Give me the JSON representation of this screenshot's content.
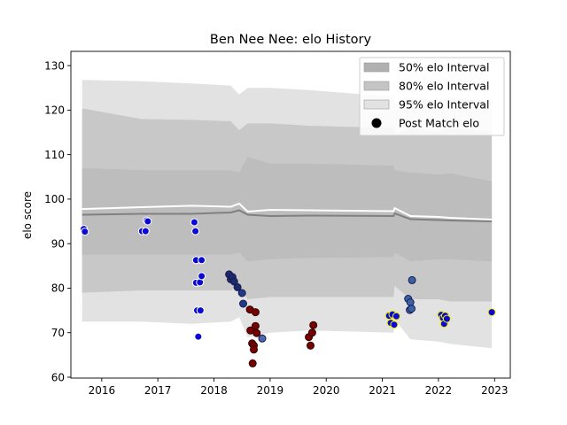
{
  "chart_data": {
    "type": "scatter",
    "title": "Ben Nee Nee: elo History",
    "xlabel": "",
    "ylabel": "elo score",
    "xlim": [
      2015.45,
      2023.28
    ],
    "ylim": [
      59.8,
      133.2
    ],
    "x_ticks": [
      2016,
      2017,
      2018,
      2019,
      2020,
      2021,
      2022,
      2023
    ],
    "y_ticks": [
      60,
      70,
      80,
      90,
      100,
      110,
      120,
      130
    ],
    "legend_position": "top-right",
    "legend": [
      {
        "label": "50% elo Interval",
        "kind": "patch",
        "color": "#b0b0b0"
      },
      {
        "label": "80% elo Interval",
        "kind": "patch",
        "color": "#c4c4c4"
      },
      {
        "label": "95% elo Interval",
        "kind": "patch",
        "color": "#e2e2e2"
      },
      {
        "label": "Post Match elo",
        "kind": "marker",
        "color": "#000000"
      }
    ],
    "interval_x": [
      2015.65,
      2015.7,
      2016.7,
      2017.6,
      2018.3,
      2018.45,
      2018.6,
      2019.0,
      2019.7,
      2021.2,
      2021.22,
      2021.5,
      2022.0,
      2022.2,
      2022.95
    ],
    "bands": {
      "ci95_upper": [
        126.8,
        126.8,
        126.5,
        126.0,
        125.5,
        123.5,
        125.0,
        125.0,
        124.5,
        123.0,
        121.5,
        123.0,
        122.0,
        123.0,
        122.0
      ],
      "ci80_upper": [
        120.3,
        120.3,
        118.0,
        117.8,
        117.5,
        115.5,
        117.0,
        117.0,
        116.5,
        116.0,
        114.5,
        116.0,
        115.0,
        116.0,
        115.0
      ],
      "ci50_upper": [
        107.0,
        107.0,
        106.5,
        106.5,
        106.5,
        106.0,
        109.5,
        108.0,
        108.0,
        107.5,
        106.5,
        106.0,
        105.5,
        105.8,
        104.0
      ],
      "ci50_lower": [
        87.5,
        87.5,
        87.5,
        87.5,
        87.5,
        88.0,
        86.0,
        86.5,
        86.8,
        87.0,
        88.0,
        86.0,
        86.5,
        86.5,
        86.0
      ],
      "ci80_lower": [
        79.0,
        79.0,
        79.5,
        79.5,
        79.5,
        80.5,
        77.5,
        78.0,
        78.0,
        78.0,
        80.5,
        77.5,
        77.5,
        77.0,
        77.0
      ],
      "ci95_lower": [
        72.5,
        72.5,
        72.5,
        72.0,
        72.5,
        73.5,
        69.0,
        70.0,
        70.5,
        70.0,
        73.0,
        68.5,
        68.0,
        67.5,
        66.5
      ]
    },
    "series": [
      {
        "line": "white",
        "color": "#ffffff",
        "values": [
          97.8,
          97.8,
          98.2,
          98.5,
          98.3,
          99.0,
          97.2,
          97.6,
          97.5,
          97.3,
          98.0,
          96.2,
          96.0,
          95.8,
          95.4
        ]
      },
      {
        "line": "gray",
        "color": "#808080",
        "values": [
          96.5,
          96.5,
          96.7,
          96.7,
          97.0,
          97.5,
          96.5,
          96.2,
          96.3,
          96.2,
          96.8,
          95.5,
          95.3,
          95.2,
          95.0
        ]
      }
    ],
    "points": [
      {
        "x": 2015.68,
        "y": 93.3,
        "fill": "#0a0ad4",
        "stroke": "#ffffff"
      },
      {
        "x": 2015.7,
        "y": 92.7,
        "fill": "#0a0ad4",
        "stroke": "#ffffff"
      },
      {
        "x": 2016.72,
        "y": 92.8,
        "fill": "#0a0ad4",
        "stroke": "#ffffff"
      },
      {
        "x": 2016.78,
        "y": 92.8,
        "fill": "#0a0ad4",
        "stroke": "#ffffff"
      },
      {
        "x": 2016.8,
        "y": 95.2,
        "fill": "#0a0ad4",
        "stroke": "#ffffff"
      },
      {
        "x": 2016.82,
        "y": 95.0,
        "fill": "#0a0ad4",
        "stroke": "#ffffff"
      },
      {
        "x": 2017.65,
        "y": 94.8,
        "fill": "#0a0ad4",
        "stroke": "#ffffff"
      },
      {
        "x": 2017.67,
        "y": 92.8,
        "fill": "#0a0ad4",
        "stroke": "#ffffff"
      },
      {
        "x": 2017.68,
        "y": 86.3,
        "fill": "#0a0ad4",
        "stroke": "#ffffff"
      },
      {
        "x": 2017.68,
        "y": 81.2,
        "fill": "#0a0ad4",
        "stroke": "#ffffff"
      },
      {
        "x": 2017.7,
        "y": 75.0,
        "fill": "#0a0ad4",
        "stroke": "#ffffff"
      },
      {
        "x": 2017.72,
        "y": 69.1,
        "fill": "#0a0ad4",
        "stroke": "#ffffff"
      },
      {
        "x": 2017.75,
        "y": 81.3,
        "fill": "#0a0ad4",
        "stroke": "#ffffff"
      },
      {
        "x": 2017.76,
        "y": 75.0,
        "fill": "#0a0ad4",
        "stroke": "#ffffff"
      },
      {
        "x": 2017.78,
        "y": 82.7,
        "fill": "#0a0ad4",
        "stroke": "#ffffff"
      },
      {
        "x": 2017.78,
        "y": 86.3,
        "fill": "#0a0ad4",
        "stroke": "#ffffff"
      },
      {
        "x": 2018.27,
        "y": 83.1,
        "fill": "#1a2a6e",
        "stroke": "#1a1a4a"
      },
      {
        "x": 2018.3,
        "y": 82.0,
        "fill": "#1a2a6e",
        "stroke": "#1a1a4a"
      },
      {
        "x": 2018.33,
        "y": 82.5,
        "fill": "#1a2a6e",
        "stroke": "#1a1a4a"
      },
      {
        "x": 2018.36,
        "y": 81.5,
        "fill": "#1a2a6e",
        "stroke": "#1a1a4a"
      },
      {
        "x": 2018.42,
        "y": 80.2,
        "fill": "#1a2a6e",
        "stroke": "#1a1a4a"
      },
      {
        "x": 2018.5,
        "y": 78.9,
        "fill": "#1e3a8a",
        "stroke": "#1a1a4a"
      },
      {
        "x": 2018.52,
        "y": 76.5,
        "fill": "#1e3a8a",
        "stroke": "#1a1a4a"
      },
      {
        "x": 2018.64,
        "y": 75.2,
        "fill": "#7a0000",
        "stroke": "#2a0000"
      },
      {
        "x": 2018.74,
        "y": 74.6,
        "fill": "#7a0000",
        "stroke": "#2a0000"
      },
      {
        "x": 2018.65,
        "y": 70.5,
        "fill": "#7a0000",
        "stroke": "#2a0000"
      },
      {
        "x": 2018.74,
        "y": 71.5,
        "fill": "#7a0000",
        "stroke": "#2a0000"
      },
      {
        "x": 2018.76,
        "y": 69.9,
        "fill": "#7a0000",
        "stroke": "#2a0000"
      },
      {
        "x": 2018.68,
        "y": 67.6,
        "fill": "#7a0000",
        "stroke": "#2a0000"
      },
      {
        "x": 2018.71,
        "y": 67.1,
        "fill": "#7a0000",
        "stroke": "#2a0000"
      },
      {
        "x": 2018.71,
        "y": 66.2,
        "fill": "#7a0000",
        "stroke": "#2a0000"
      },
      {
        "x": 2018.69,
        "y": 63.1,
        "fill": "#7a0000",
        "stroke": "#2a0000"
      },
      {
        "x": 2018.86,
        "y": 68.7,
        "fill": "#4a6ab0",
        "stroke": "#1a1a4a"
      },
      {
        "x": 2019.69,
        "y": 69.0,
        "fill": "#7a0000",
        "stroke": "#2a0000"
      },
      {
        "x": 2019.72,
        "y": 67.1,
        "fill": "#7a0000",
        "stroke": "#2a0000"
      },
      {
        "x": 2019.75,
        "y": 70.0,
        "fill": "#7a0000",
        "stroke": "#2a0000"
      },
      {
        "x": 2019.77,
        "y": 71.7,
        "fill": "#7a0000",
        "stroke": "#2a0000"
      },
      {
        "x": 2021.12,
        "y": 73.8,
        "fill": "#0a0ad4",
        "stroke": "#f0f000"
      },
      {
        "x": 2021.15,
        "y": 72.2,
        "fill": "#0a0ad4",
        "stroke": "#f0f000"
      },
      {
        "x": 2021.18,
        "y": 74.1,
        "fill": "#0a0ad4",
        "stroke": "#f0f000"
      },
      {
        "x": 2021.21,
        "y": 71.8,
        "fill": "#0a0ad4",
        "stroke": "#f0f000"
      },
      {
        "x": 2021.25,
        "y": 73.7,
        "fill": "#0a0ad4",
        "stroke": "#f0f000"
      },
      {
        "x": 2021.46,
        "y": 77.6,
        "fill": "#3a62a8",
        "stroke": "#1a1a4a"
      },
      {
        "x": 2021.5,
        "y": 76.8,
        "fill": "#3a62a8",
        "stroke": "#1a1a4a"
      },
      {
        "x": 2021.49,
        "y": 75.1,
        "fill": "#3a62a8",
        "stroke": "#1a1a4a"
      },
      {
        "x": 2021.52,
        "y": 75.4,
        "fill": "#3a62a8",
        "stroke": "#1a1a4a"
      },
      {
        "x": 2021.53,
        "y": 81.8,
        "fill": "#3a62a8",
        "stroke": "#1a1a4a"
      },
      {
        "x": 2022.05,
        "y": 74.0,
        "fill": "#0a0ad4",
        "stroke": "#f0f000"
      },
      {
        "x": 2022.08,
        "y": 73.3,
        "fill": "#0a0ad4",
        "stroke": "#f0f000"
      },
      {
        "x": 2022.1,
        "y": 72.0,
        "fill": "#0a0ad4",
        "stroke": "#f0f000"
      },
      {
        "x": 2022.12,
        "y": 73.8,
        "fill": "#0a0ad4",
        "stroke": "#f0f000"
      },
      {
        "x": 2022.15,
        "y": 73.1,
        "fill": "#0a0ad4",
        "stroke": "#f0f000"
      },
      {
        "x": 2022.95,
        "y": 74.6,
        "fill": "#0a0ad4",
        "stroke": "#f0f000"
      }
    ]
  }
}
